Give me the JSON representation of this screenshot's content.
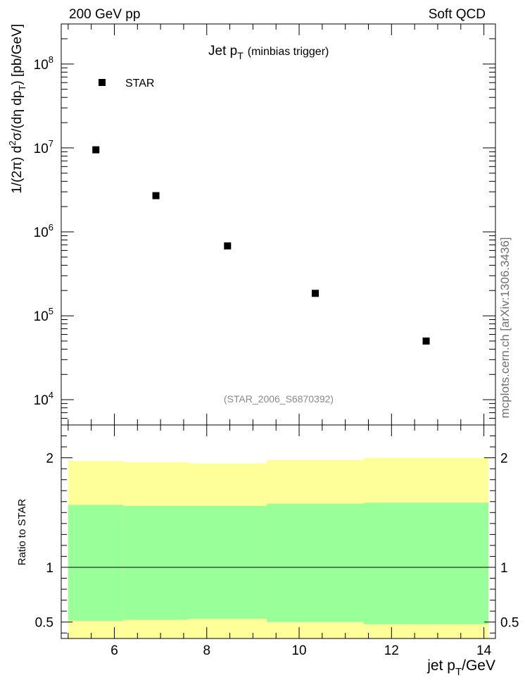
{
  "header": {
    "left": "200 GeV pp",
    "right": "Soft QCD",
    "side_label": "mcplots.cern.ch [arXiv:1306.3436]"
  },
  "chart_data": [
    {
      "type": "scatter",
      "title": "Jet p_T",
      "title_main": "Jet p",
      "title_sub": "T",
      "title_note": "(minbias trigger)",
      "ylabel": "1/(2π) d²σ/(dη dp_T) [pb/GeV]",
      "ylabel_parts": {
        "a": "1/(2",
        "pi": "π",
        "b": ") d",
        "sup2": "2",
        "c": "σ/(d",
        "eta": "η",
        "d": " dp",
        "subT": "T",
        "e": ") [pb/GeV]"
      },
      "yscale": "log",
      "ylim": [
        5000,
        300000000
      ],
      "xlim": [
        4.85,
        14.25
      ],
      "yticks": [
        {
          "value": 10000,
          "base": "10",
          "exp": "4"
        },
        {
          "value": 100000,
          "base": "10",
          "exp": "5"
        },
        {
          "value": 1000000,
          "base": "10",
          "exp": "6"
        },
        {
          "value": 10000000,
          "base": "10",
          "exp": "7"
        },
        {
          "value": 100000000,
          "base": "10",
          "exp": "8"
        }
      ],
      "series": [
        {
          "name": "STAR",
          "x": [
            5.6,
            6.9,
            8.45,
            10.35,
            12.75
          ],
          "y": [
            9500000,
            2700000,
            680000,
            185000,
            50000
          ]
        }
      ],
      "legend": "top-left",
      "annotation": "(STAR_2006_S6870392)"
    },
    {
      "type": "area",
      "ylabel": "Ratio to STAR",
      "xlabel": "jet p_T/GeV",
      "xlabel_parts": {
        "a": "jet p",
        "subT": "T",
        "b": "/GeV"
      },
      "xlim": [
        4.85,
        14.25
      ],
      "ylim": [
        0.35,
        2.3
      ],
      "xticks": [
        {
          "value": 6,
          "label": "6"
        },
        {
          "value": 8,
          "label": "8"
        },
        {
          "value": 10,
          "label": "10"
        },
        {
          "value": 12,
          "label": "12"
        },
        {
          "value": 14,
          "label": "14"
        }
      ],
      "yticks": [
        {
          "value": 0.5,
          "label": "0.5"
        },
        {
          "value": 1,
          "label": "1"
        },
        {
          "value": 2,
          "label": "2"
        }
      ],
      "reference_line": 1,
      "bins": [
        5.0,
        6.2,
        7.6,
        9.3,
        11.4,
        14.1
      ],
      "band_2sigma": {
        "color": "#ffff99",
        "low": [
          0.31,
          0.31,
          0.31,
          0.31,
          0.31
        ],
        "high": [
          1.97,
          1.96,
          1.95,
          1.98,
          2.0
        ]
      },
      "band_1sigma": {
        "color": "#99ff99",
        "low": [
          0.51,
          0.52,
          0.53,
          0.5,
          0.48
        ],
        "high": [
          1.57,
          1.56,
          1.56,
          1.58,
          1.59
        ]
      }
    }
  ]
}
